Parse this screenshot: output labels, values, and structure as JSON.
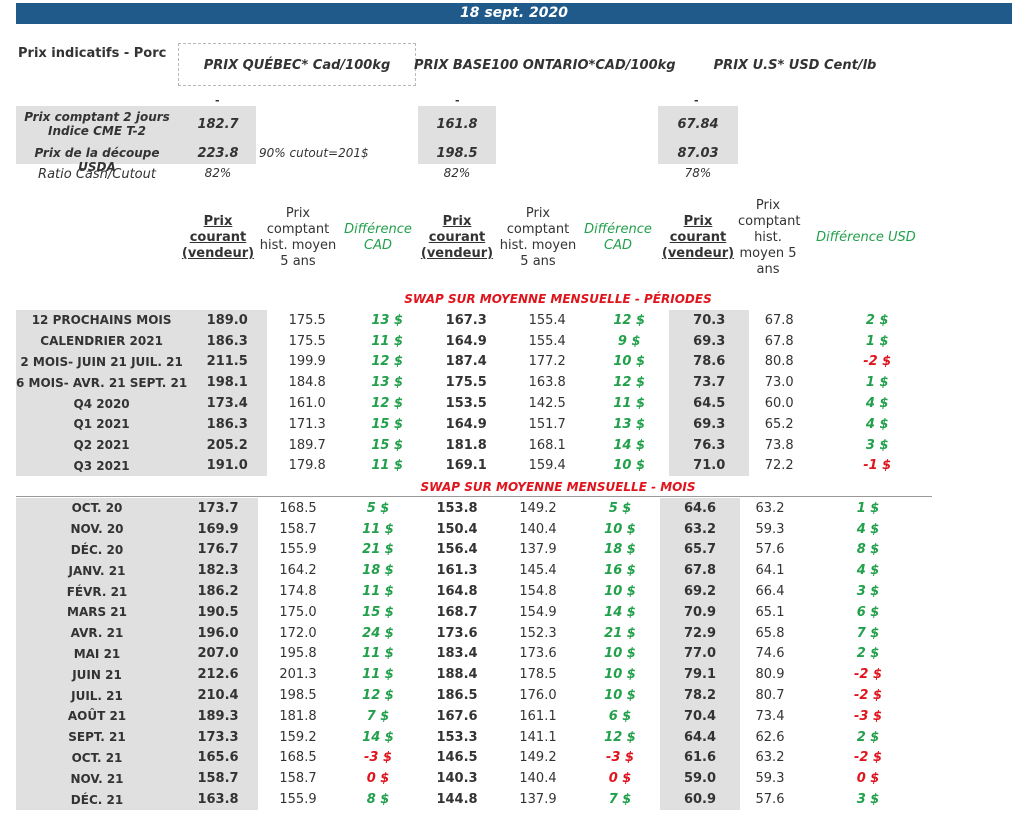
{
  "date": "18 sept. 2020",
  "page_title": "Prix indicatifs - Porc",
  "markets": [
    {
      "name": "PRIX QUÉBEC* Cad/100kg",
      "dash": "-"
    },
    {
      "name": "PRIX BASE100 ONTARIO*CAD/100kg",
      "dash": "-"
    },
    {
      "name": "PRIX U.S* USD Cent/lb",
      "dash": "-"
    }
  ],
  "indicators": {
    "cash_label_1": "Prix comptant 2 jours",
    "cash_label_2": "Indice CME T-2",
    "cutout_label": "Prix de la découpe USDA",
    "ratio_label": "Ratio Cash/Cutout",
    "cutout_note": "90% cutout=201$",
    "cash": [
      "182.7",
      "161.8",
      "67.84"
    ],
    "cutout": [
      "223.8",
      "198.5",
      "87.03"
    ],
    "ratio": [
      "82%",
      "82%",
      "78%"
    ]
  },
  "headers": {
    "current": [
      "Prix",
      "courant",
      "(vendeur)"
    ],
    "hist": [
      "Prix",
      "comptant",
      "hist. moyen",
      "5 ans"
    ],
    "hist_us": [
      "Prix",
      "comptant",
      "hist.",
      "moyen 5",
      "ans"
    ],
    "diff_cad": [
      "Différence",
      "CAD"
    ],
    "diff_usd": "Différence USD"
  },
  "periods_title": "SWAP SUR MOYENNE MENSUELLE - PÉRIODES",
  "months_title": "SWAP SUR MOYENNE MENSUELLE - MOIS",
  "periods": [
    {
      "label": "12 PROCHAINS MOIS",
      "v": [
        "189.0",
        "175.5",
        "13 $",
        "167.3",
        "155.4",
        "12 $",
        "70.3",
        "67.8",
        "2 $"
      ]
    },
    {
      "label": "CALENDRIER 2021",
      "v": [
        "186.3",
        "175.5",
        "11 $",
        "164.9",
        "155.4",
        "9 $",
        "69.3",
        "67.8",
        "1 $"
      ]
    },
    {
      "label": "2 MOIS- JUIN 21 JUIL. 21",
      "v": [
        "211.5",
        "199.9",
        "12 $",
        "187.4",
        "177.2",
        "10 $",
        "78.6",
        "80.8",
        "-2 $"
      ]
    },
    {
      "label": "6 MOIS- AVR. 21 SEPT. 21",
      "v": [
        "198.1",
        "184.8",
        "13 $",
        "175.5",
        "163.8",
        "12 $",
        "73.7",
        "73.0",
        "1 $"
      ]
    },
    {
      "label": "Q4 2020",
      "v": [
        "173.4",
        "161.0",
        "12 $",
        "153.5",
        "142.5",
        "11 $",
        "64.5",
        "60.0",
        "4 $"
      ]
    },
    {
      "label": "Q1 2021",
      "v": [
        "186.3",
        "171.3",
        "15 $",
        "164.9",
        "151.7",
        "13 $",
        "69.3",
        "65.2",
        "4 $"
      ]
    },
    {
      "label": "Q2 2021",
      "v": [
        "205.2",
        "189.7",
        "15 $",
        "181.8",
        "168.1",
        "14 $",
        "76.3",
        "73.8",
        "3 $"
      ]
    },
    {
      "label": "Q3 2021",
      "v": [
        "191.0",
        "179.8",
        "11 $",
        "169.1",
        "159.4",
        "10 $",
        "71.0",
        "72.2",
        "-1 $"
      ]
    }
  ],
  "months": [
    {
      "label": "OCT. 20",
      "v": [
        "173.7",
        "168.5",
        "5 $",
        "153.8",
        "149.2",
        "5 $",
        "64.6",
        "63.2",
        "1 $"
      ]
    },
    {
      "label": "NOV. 20",
      "v": [
        "169.9",
        "158.7",
        "11 $",
        "150.4",
        "140.4",
        "10 $",
        "63.2",
        "59.3",
        "4 $"
      ]
    },
    {
      "label": "DÉC. 20",
      "v": [
        "176.7",
        "155.9",
        "21 $",
        "156.4",
        "137.9",
        "18 $",
        "65.7",
        "57.6",
        "8 $"
      ]
    },
    {
      "label": "JANV. 21",
      "v": [
        "182.3",
        "164.2",
        "18 $",
        "161.3",
        "145.4",
        "16 $",
        "67.8",
        "64.1",
        "4 $"
      ]
    },
    {
      "label": "FÉVR. 21",
      "v": [
        "186.2",
        "174.8",
        "11 $",
        "164.8",
        "154.8",
        "10 $",
        "69.2",
        "66.4",
        "3 $"
      ]
    },
    {
      "label": "MARS 21",
      "v": [
        "190.5",
        "175.0",
        "15 $",
        "168.7",
        "154.9",
        "14 $",
        "70.9",
        "65.1",
        "6 $"
      ]
    },
    {
      "label": "AVR. 21",
      "v": [
        "196.0",
        "172.0",
        "24 $",
        "173.6",
        "152.3",
        "21 $",
        "72.9",
        "65.8",
        "7 $"
      ]
    },
    {
      "label": "MAI 21",
      "v": [
        "207.0",
        "195.8",
        "11 $",
        "183.4",
        "173.6",
        "10 $",
        "77.0",
        "74.6",
        "2 $"
      ]
    },
    {
      "label": "JUIN 21",
      "v": [
        "212.6",
        "201.3",
        "11 $",
        "188.4",
        "178.5",
        "10 $",
        "79.1",
        "80.9",
        "-2 $"
      ]
    },
    {
      "label": "JUIL. 21",
      "v": [
        "210.4",
        "198.5",
        "12 $",
        "186.5",
        "176.0",
        "10 $",
        "78.2",
        "80.7",
        "-2 $"
      ]
    },
    {
      "label": "AOÛT 21",
      "v": [
        "189.3",
        "181.8",
        "7 $",
        "167.6",
        "161.1",
        "6 $",
        "70.4",
        "73.4",
        "-3 $"
      ]
    },
    {
      "label": "SEPT. 21",
      "v": [
        "173.3",
        "159.2",
        "14 $",
        "153.3",
        "141.1",
        "12 $",
        "64.4",
        "62.6",
        "2 $"
      ]
    },
    {
      "label": "OCT. 21",
      "v": [
        "165.6",
        "168.5",
        "-3 $",
        "146.5",
        "149.2",
        "-3 $",
        "61.6",
        "63.2",
        "-2 $"
      ]
    },
    {
      "label": "NOV. 21",
      "v": [
        "158.7",
        "158.7",
        "0 $",
        "140.3",
        "140.4",
        "0 $",
        "59.0",
        "59.3",
        "0 $"
      ]
    },
    {
      "label": "DÉC. 21",
      "v": [
        "163.8",
        "155.9",
        "8 $",
        "144.8",
        "137.9",
        "7 $",
        "60.9",
        "57.6",
        "3 $"
      ]
    }
  ],
  "colors": {
    "positive": "#22a04b",
    "negative": "#e0141c",
    "header_bar": "#1f5a8a",
    "gray": "#e0e0e0"
  }
}
